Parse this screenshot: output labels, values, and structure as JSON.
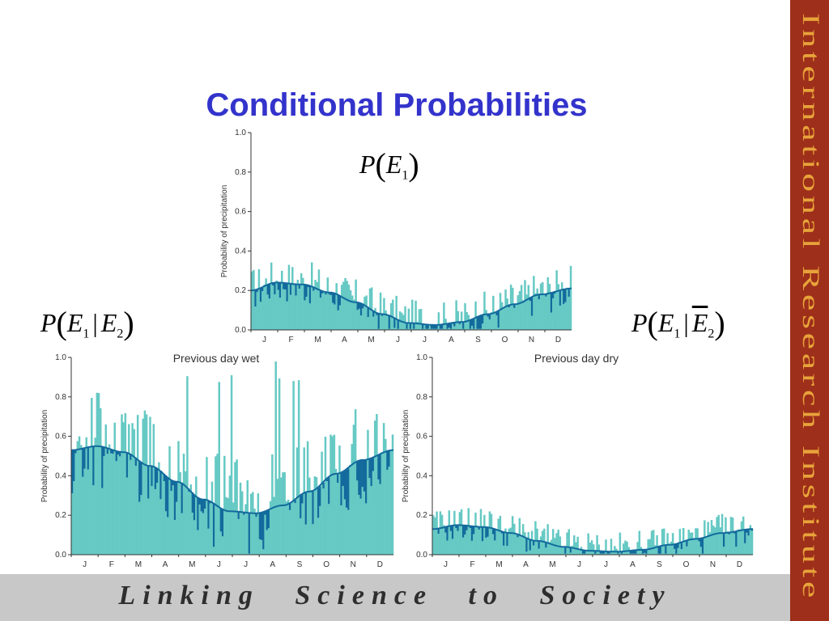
{
  "title": "Conditional Probabilities",
  "formulas": {
    "top": {
      "p": "P",
      "e1": "E",
      "e1_sub": "1"
    },
    "left": {
      "p": "P",
      "e1": "E",
      "e1_sub": "1",
      "bar": "|",
      "e2": "E",
      "e2_sub": "2"
    },
    "right": {
      "p": "P",
      "e1": "E",
      "e1_sub": "1",
      "bar": "|",
      "e2": "E",
      "e2_sub": "2"
    }
  },
  "colors": {
    "bars": "#66c9c4",
    "fit": "#136a9c",
    "title": "#3333cc",
    "band": "#9e2f1a",
    "band_text": "#e8a33a",
    "footer_bg": "#c8c8c8"
  },
  "sidebar_text": "International Research Institute",
  "tagline": "Linking Science to Society",
  "chart_data": [
    {
      "type": "bar",
      "title": "",
      "ylabel": "Probability of precipitation",
      "xlabel": "",
      "ylim": [
        0,
        1.0
      ],
      "yticks": [
        "0.0",
        "0.2",
        "0.4",
        "0.6",
        "0.8",
        "1.0"
      ],
      "months": [
        "J",
        "F",
        "M",
        "A",
        "M",
        "J",
        "J",
        "A",
        "S",
        "O",
        "N",
        "D"
      ],
      "fit_series_name": "",
      "x_days": [
        1,
        30,
        60,
        90,
        120,
        150,
        180,
        210,
        240,
        270,
        300,
        330,
        365
      ],
      "fit_values": [
        0.2,
        0.24,
        0.23,
        0.19,
        0.14,
        0.08,
        0.035,
        0.025,
        0.04,
        0.08,
        0.13,
        0.18,
        0.21
      ],
      "bar_noise_max": 0.11
    },
    {
      "type": "bar",
      "title": "Previous day wet",
      "ylabel": "Probability of precipitation",
      "xlabel": "",
      "ylim": [
        0,
        1.0
      ],
      "yticks": [
        "0.0",
        "0.2",
        "0.4",
        "0.6",
        "0.8",
        "1.0"
      ],
      "months": [
        "J",
        "F",
        "M",
        "A",
        "M",
        "J",
        "J",
        "A",
        "S",
        "O",
        "N",
        "D"
      ],
      "x_days": [
        1,
        30,
        60,
        90,
        120,
        150,
        180,
        210,
        240,
        270,
        300,
        330,
        365
      ],
      "fit_values": [
        0.53,
        0.55,
        0.52,
        0.45,
        0.37,
        0.28,
        0.22,
        0.21,
        0.25,
        0.32,
        0.41,
        0.48,
        0.53
      ],
      "bar_noise_max": 0.25,
      "spikes_to": 1.0
    },
    {
      "type": "bar",
      "title": "Previous day dry",
      "ylabel": "Probability of precipitation",
      "xlabel": "",
      "ylim": [
        0,
        1.0
      ],
      "yticks": [
        "0.0",
        "0.2",
        "0.4",
        "0.6",
        "0.8",
        "1.0"
      ],
      "months": [
        "J",
        "F",
        "M",
        "A",
        "M",
        "J",
        "J",
        "A",
        "S",
        "O",
        "N",
        "D"
      ],
      "x_days": [
        1,
        30,
        60,
        90,
        120,
        150,
        180,
        210,
        240,
        270,
        300,
        330,
        365
      ],
      "fit_values": [
        0.13,
        0.15,
        0.14,
        0.11,
        0.07,
        0.04,
        0.02,
        0.015,
        0.025,
        0.05,
        0.08,
        0.11,
        0.13
      ],
      "bar_noise_max": 0.09
    }
  ]
}
